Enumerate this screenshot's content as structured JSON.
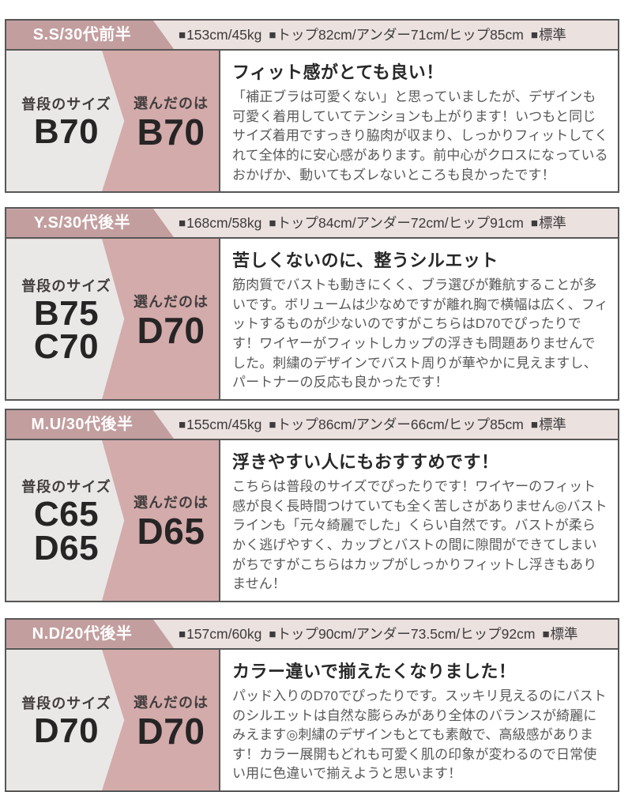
{
  "icons": {
    "bullet": "■"
  },
  "colors": {
    "badge_mauve": "#c39e9f",
    "header_bg": "#ebe1df",
    "panel_gray": "#eae8e6",
    "panel_pink": "#d3abaa",
    "border": "#575757"
  },
  "sections": [
    {
      "person": "S.S/30代前半",
      "height_weight": "153cm/45kg",
      "measurements": "トップ82cm/アンダー71cm/ヒップ85cm",
      "figure": "標準",
      "usual_label": "普段のサイズ",
      "usual_sizes": [
        "B70"
      ],
      "chosen_label": "選んだのは",
      "chosen_size": "B70",
      "review_title": "フィット感がとても良い！",
      "review_body": "「補正ブラは可愛くない」と思っていましたが、デザインも可愛く着用していてテンションも上がります！いつもと同じサイズ着用ですっきり脇肉が収まり、しっかりフィットしてくれて全体的に安心感があります。前中心がクロスになっているおかげか、動いてもズレないところも良かったです！"
    },
    {
      "person": "Y.S/30代後半",
      "height_weight": "168cm/58kg",
      "measurements": "トップ84cm/アンダー72cm/ヒップ91cm",
      "figure": "標準",
      "usual_label": "普段のサイズ",
      "usual_sizes": [
        "B75",
        "C70"
      ],
      "chosen_label": "選んだのは",
      "chosen_size": "D70",
      "review_title": "苦しくないのに、整うシルエット",
      "review_body": "筋肉質でバストも動きにくく、ブラ選びが難航することが多いです。ボリュームは少なめですが離れ胸で横幅は広く、フィットするものが少ないのですがこちらはD70でぴったりです！ワイヤーがフィットしカップの浮きも問題ありませんでした。刺繍のデザインでバスト周りが華やかに見えますし、パートナーの反応も良かったです！"
    },
    {
      "person": "M.U/30代後半",
      "height_weight": "155cm/45kg",
      "measurements": "トップ86cm/アンダー66cm/ヒップ85cm",
      "figure": "標準",
      "usual_label": "普段のサイズ",
      "usual_sizes": [
        "C65",
        "D65"
      ],
      "chosen_label": "選んだのは",
      "chosen_size": "D65",
      "review_title": "浮きやすい人にもおすすめです！",
      "review_body": "こちらは普段のサイズでぴったりです！ワイヤーのフィット感が良く長時間つけていても全く苦しさがありません◎バストラインも「元々綺麗でした」くらい自然です。バストが柔らかく逃げやすく、カップとバストの間に隙間ができてしまいがちですがこちらはカップがしっかりフィットし浮きもありません！"
    },
    {
      "person": "N.D/20代後半",
      "height_weight": "157cm/60kg",
      "measurements": "トップ90cm/アンダー73.5cm/ヒップ92cm",
      "figure": "標準",
      "usual_label": "普段のサイズ",
      "usual_sizes": [
        "D70"
      ],
      "chosen_label": "選んだのは",
      "chosen_size": "D70",
      "review_title": "カラー違いで揃えたくなりました！",
      "review_body": "パッド入りのD70でぴったりです。スッキリ見えるのにバストのシルエットは自然な膨らみがあり全体のバランスが綺麗にみえます◎刺繍のデザインもとても素敵で、高級感があります！カラー展開もどれも可愛く肌の印象が変わるので日常使い用に色違いで揃えようと思います！"
    }
  ]
}
